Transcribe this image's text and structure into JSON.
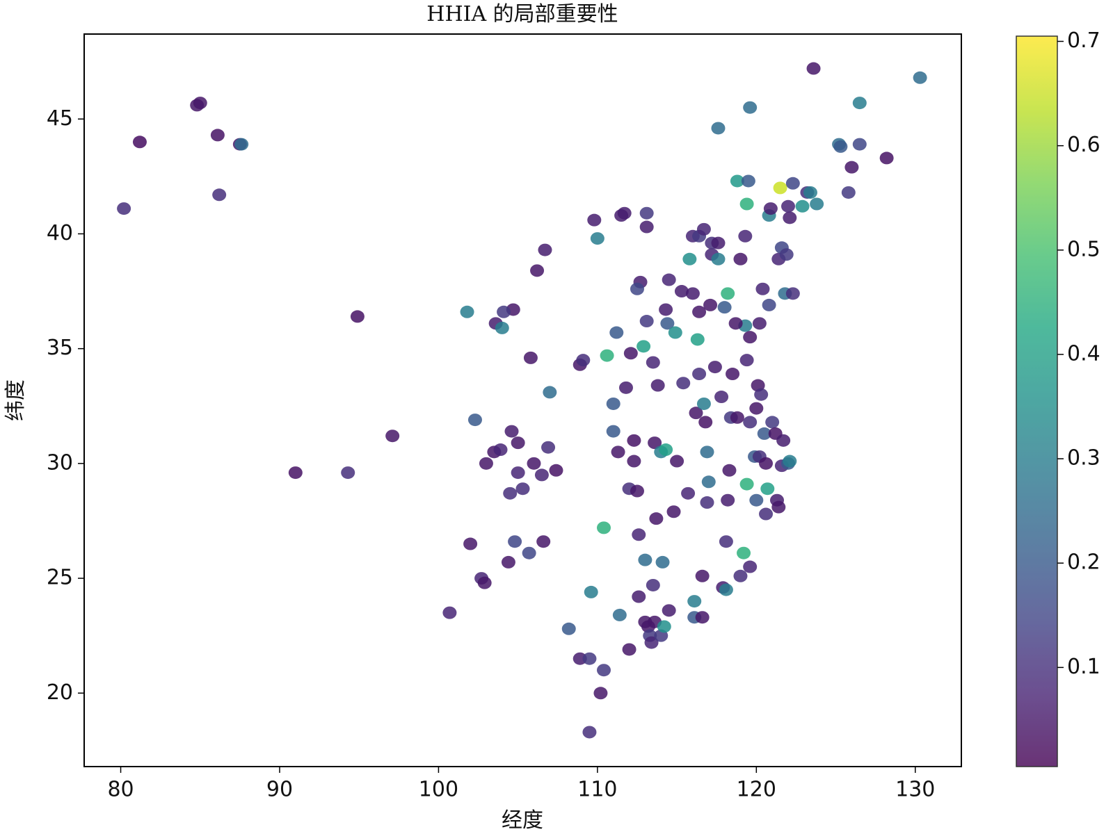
{
  "chart_data": {
    "type": "scatter",
    "title": "HHIA 的局部重要性",
    "x_label": "经度",
    "y_label": "纬度",
    "x": [
      85.0,
      84.8,
      81.2,
      80.2,
      86.1,
      87.5,
      87.6,
      86.2,
      94.9,
      91.0,
      94.3,
      97.1,
      100.7,
      102.0,
      101.8,
      102.3,
      103.0,
      103.5,
      103.9,
      103.6,
      104.0,
      104.7,
      104.1,
      104.6,
      105.0,
      104.5,
      105.0,
      105.3,
      105.8,
      106.2,
      106.7,
      106.6,
      106.5,
      106.9,
      107.4,
      106.0,
      105.7,
      104.8,
      104.4,
      102.7,
      102.9,
      107.0,
      108.2,
      108.9,
      109.1,
      108.9,
      109.5,
      109.6,
      109.5,
      110.2,
      110.4,
      110.4,
      109.8,
      110.0,
      110.6,
      111.0,
      111.2,
      111.0,
      111.3,
      111.4,
      111.5,
      111.7,
      111.8,
      112.0,
      112.0,
      112.3,
      112.3,
      112.5,
      112.6,
      112.6,
      112.7,
      112.5,
      112.9,
      113.1,
      113.1,
      113.0,
      113.2,
      113.3,
      113.6,
      113.0,
      113.4,
      113.5,
      113.6,
      114.0,
      114.3,
      113.7,
      114.0,
      114.2,
      114.1,
      114.3,
      114.5,
      114.4,
      114.5,
      114.8,
      115.0,
      115.4,
      115.7,
      115.8,
      116.0,
      116.4,
      116.7,
      116.0,
      116.4,
      116.3,
      116.2,
      116.4,
      116.7,
      116.8,
      116.9,
      116.1,
      116.1,
      116.6,
      116.6,
      116.9,
      117.0,
      117.2,
      117.2,
      117.4,
      117.1,
      117.6,
      117.9,
      118.1,
      118.0,
      118.2,
      118.1,
      118.2,
      118.3,
      118.4,
      118.5,
      118.8,
      118.8,
      119.3,
      119.0,
      119.2,
      119.4,
      119.4,
      119.6,
      119.5,
      119.3,
      119.6,
      119.4,
      119.6,
      119.6,
      119.9,
      120.0,
      120.1,
      120.2,
      120.0,
      120.2,
      120.4,
      120.5,
      120.6,
      120.6,
      120.7,
      120.8,
      120.8,
      120.9,
      121.0,
      121.2,
      121.3,
      121.4,
      121.6,
      121.5,
      121.4,
      121.6,
      121.8,
      121.7,
      122.0,
      122.1,
      122.0,
      122.1,
      121.9,
      122.3,
      122.9,
      123.2,
      123.4,
      123.8,
      123.6,
      125.2,
      125.3,
      125.8,
      126.0,
      126.5,
      126.5,
      128.2,
      130.3,
      113.8,
      113.5,
      114.9,
      115.3,
      117.8,
      118.7,
      120.3,
      122.3,
      119.0,
      117.6,
      112.1,
      113.1,
      117.6
    ],
    "values": [
      45.7,
      45.6,
      44.0,
      41.1,
      44.3,
      43.9,
      43.9,
      41.7,
      36.4,
      29.6,
      29.6,
      31.2,
      23.5,
      26.5,
      36.6,
      31.9,
      30.0,
      30.5,
      30.6,
      36.1,
      35.9,
      36.7,
      36.6,
      31.4,
      30.9,
      28.7,
      29.6,
      28.9,
      34.6,
      38.4,
      39.3,
      26.6,
      29.5,
      30.7,
      29.7,
      30.0,
      26.1,
      26.6,
      25.7,
      25.0,
      24.8,
      33.1,
      22.8,
      34.3,
      34.5,
      21.5,
      21.5,
      24.4,
      18.3,
      20.0,
      21.0,
      27.2,
      40.6,
      39.8,
      34.7,
      32.6,
      35.7,
      31.4,
      30.5,
      23.4,
      40.8,
      40.9,
      33.3,
      28.9,
      21.9,
      31.0,
      30.1,
      28.8,
      26.9,
      24.2,
      37.9,
      37.6,
      35.1,
      40.3,
      40.9,
      23.1,
      22.9,
      22.5,
      23.1,
      25.8,
      22.2,
      24.7,
      30.9,
      30.5,
      30.6,
      27.6,
      22.5,
      22.9,
      25.7,
      36.7,
      38.0,
      36.1,
      23.6,
      27.9,
      30.1,
      33.5,
      28.7,
      38.9,
      39.9,
      39.9,
      40.2,
      37.4,
      36.6,
      35.4,
      32.2,
      33.9,
      32.6,
      31.8,
      30.5,
      24.0,
      23.3,
      23.3,
      25.1,
      28.3,
      29.2,
      39.1,
      39.6,
      34.2,
      36.9,
      44.6,
      24.6,
      24.5,
      36.8,
      37.4,
      26.6,
      28.4,
      29.7,
      32.0,
      33.9,
      32.0,
      42.3,
      39.9,
      25.1,
      26.1,
      29.1,
      41.3,
      45.5,
      42.3,
      36.0,
      35.5,
      34.5,
      31.8,
      25.5,
      30.3,
      32.4,
      33.4,
      36.1,
      28.4,
      30.3,
      37.6,
      31.3,
      27.8,
      30.0,
      28.9,
      40.8,
      36.9,
      41.1,
      31.8,
      31.3,
      28.4,
      28.1,
      29.9,
      42.0,
      38.9,
      39.4,
      37.4,
      31.0,
      30.0,
      40.7,
      41.2,
      30.1,
      39.1,
      42.2,
      41.2,
      41.8,
      41.8,
      41.3,
      47.2,
      43.9,
      43.8,
      41.8,
      42.9,
      45.7,
      43.9,
      43.3,
      46.8,
      33.4,
      34.4,
      35.7,
      37.5,
      32.9,
      36.1,
      33.0,
      37.4,
      38.9,
      39.6,
      34.8,
      36.2,
      38.9
    ],
    "color_values": [
      0.05,
      0.05,
      0.03,
      0.1,
      0.04,
      0.05,
      0.25,
      0.1,
      0.04,
      0.04,
      0.1,
      0.05,
      0.08,
      0.05,
      0.3,
      0.2,
      0.05,
      0.05,
      0.08,
      0.06,
      0.3,
      0.05,
      0.12,
      0.06,
      0.05,
      0.1,
      0.08,
      0.1,
      0.05,
      0.05,
      0.06,
      0.05,
      0.08,
      0.1,
      0.04,
      0.05,
      0.15,
      0.15,
      0.05,
      0.08,
      0.05,
      0.25,
      0.2,
      0.05,
      0.1,
      0.06,
      0.12,
      0.3,
      0.1,
      0.05,
      0.12,
      0.45,
      0.06,
      0.3,
      0.45,
      0.2,
      0.2,
      0.2,
      0.05,
      0.25,
      0.06,
      0.06,
      0.06,
      0.1,
      0.05,
      0.04,
      0.05,
      0.05,
      0.08,
      0.06,
      0.06,
      0.15,
      0.4,
      0.06,
      0.12,
      0.05,
      0.05,
      0.12,
      0.05,
      0.25,
      0.08,
      0.1,
      0.05,
      0.3,
      0.4,
      0.05,
      0.12,
      0.35,
      0.25,
      0.06,
      0.08,
      0.2,
      0.06,
      0.05,
      0.05,
      0.1,
      0.08,
      0.35,
      0.08,
      0.12,
      0.08,
      0.06,
      0.05,
      0.4,
      0.05,
      0.1,
      0.3,
      0.04,
      0.25,
      0.3,
      0.2,
      0.05,
      0.05,
      0.1,
      0.25,
      0.08,
      0.1,
      0.06,
      0.05,
      0.25,
      0.06,
      0.3,
      0.2,
      0.45,
      0.1,
      0.06,
      0.05,
      0.12,
      0.05,
      0.05,
      0.38,
      0.08,
      0.1,
      0.45,
      0.45,
      0.45,
      0.25,
      0.2,
      0.3,
      0.05,
      0.08,
      0.1,
      0.08,
      0.2,
      0.05,
      0.05,
      0.06,
      0.2,
      0.1,
      0.08,
      0.2,
      0.1,
      0.04,
      0.4,
      0.3,
      0.15,
      0.06,
      0.12,
      0.04,
      0.06,
      0.05,
      0.08,
      0.65,
      0.08,
      0.15,
      0.25,
      0.06,
      0.2,
      0.06,
      0.08,
      0.3,
      0.12,
      0.15,
      0.35,
      0.1,
      0.3,
      0.3,
      0.05,
      0.25,
      0.2,
      0.12,
      0.05,
      0.3,
      0.15,
      0.04,
      0.25,
      0.06,
      0.08,
      0.35,
      0.06,
      0.08,
      0.05,
      0.1,
      0.1,
      0.05,
      0.06,
      0.05,
      0.12,
      0.3
    ],
    "colormap": "viridis",
    "xlim": [
      77.7,
      132.9
    ],
    "ylim": [
      16.8,
      48.7
    ],
    "xticks": [
      80,
      90,
      100,
      110,
      120,
      130
    ],
    "yticks": [
      20,
      25,
      30,
      35,
      40,
      45
    ],
    "clim": [
      0.005,
      0.705
    ],
    "colorbar_ticks": [
      0.1,
      0.2,
      0.3,
      0.4,
      0.5,
      0.6,
      0.7
    ]
  }
}
